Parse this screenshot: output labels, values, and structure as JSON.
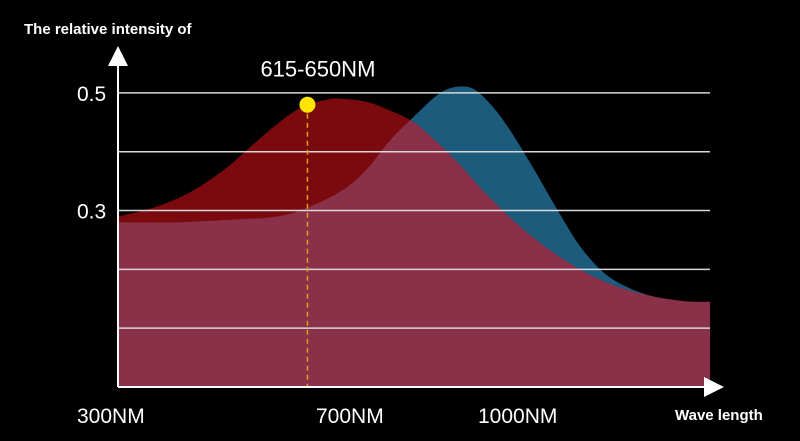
{
  "chart_data": {
    "type": "area",
    "ylabel": "The relative intensity of",
    "xlabel": "Wave length",
    "y_ticks": [
      {
        "value": 0.5,
        "label": "0.5"
      },
      {
        "value": 0.3,
        "label": "0.3"
      }
    ],
    "x_tick_labels": [
      "300NM",
      "700NM",
      "1000NM"
    ],
    "ylim": [
      0,
      0.59
    ],
    "gridlines": [
      0.5,
      0.4,
      0.3,
      0.2,
      0.1
    ],
    "grid": true,
    "series": [
      {
        "color": "#7a0a0d",
        "x": [
          0,
          0.06,
          0.12,
          0.18,
          0.22,
          0.26,
          0.3,
          0.33,
          0.36,
          0.38,
          0.42,
          0.46,
          0.5,
          0.54,
          0.58,
          0.62,
          0.66,
          0.7,
          0.74,
          0.78,
          0.82,
          0.86,
          0.9,
          0.94,
          0.97,
          1.0
        ],
        "y": [
          0.29,
          0.305,
          0.33,
          0.37,
          0.405,
          0.44,
          0.47,
          0.483,
          0.49,
          0.49,
          0.485,
          0.47,
          0.45,
          0.415,
          0.375,
          0.33,
          0.29,
          0.255,
          0.225,
          0.2,
          0.18,
          0.165,
          0.155,
          0.148,
          0.145,
          0.145
        ]
      },
      {
        "color": "#1d5b7d",
        "x": [
          0,
          0.1,
          0.2,
          0.27,
          0.32,
          0.38,
          0.42,
          0.46,
          0.5,
          0.54,
          0.57,
          0.6,
          0.63,
          0.66,
          0.7,
          0.74,
          0.78,
          0.82,
          0.86,
          0.9,
          0.94,
          0.97,
          1.0
        ],
        "y": [
          0.28,
          0.28,
          0.285,
          0.29,
          0.305,
          0.335,
          0.37,
          0.42,
          0.46,
          0.497,
          0.51,
          0.507,
          0.48,
          0.44,
          0.375,
          0.305,
          0.24,
          0.195,
          0.17,
          0.155,
          0.148,
          0.145,
          0.145
        ]
      }
    ],
    "annotation": {
      "label": "615-650NM",
      "x": 0.32,
      "y": 0.48,
      "marker_color": "#ffe600"
    },
    "overlap_color": "#8a3048"
  }
}
